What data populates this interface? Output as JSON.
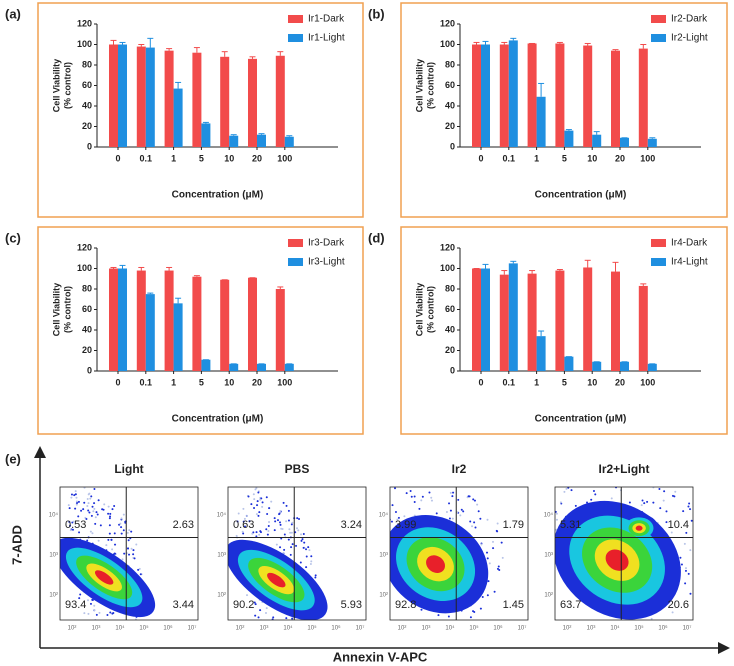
{
  "chart_data": [
    {
      "type": "bar",
      "label": "(a)",
      "ylabel": [
        "Cell Viability",
        "(% control)"
      ],
      "xlabel": "Concentration (μM)",
      "categories": [
        "0",
        "0.1",
        "1",
        "5",
        "10",
        "20",
        "100"
      ],
      "ylim": [
        0,
        120
      ],
      "yticks": [
        0,
        20,
        40,
        60,
        80,
        100,
        120
      ],
      "series": [
        {
          "name": "Ir1-Dark",
          "color": "#f24b4b",
          "values": [
            100,
            98,
            94,
            92,
            88,
            86,
            89
          ],
          "errors": [
            4,
            2,
            2,
            5,
            5,
            2,
            4
          ]
        },
        {
          "name": "Ir1-Light",
          "color": "#1f8fe0",
          "values": [
            100,
            97,
            57,
            23,
            11,
            12,
            10
          ],
          "errors": [
            2,
            9,
            6,
            1,
            1,
            1,
            1
          ]
        }
      ]
    },
    {
      "type": "bar",
      "label": "(b)",
      "ylabel": [
        "Cell Viability",
        "(% control)"
      ],
      "xlabel": "Concentration (μM)",
      "categories": [
        "0",
        "0.1",
        "1",
        "5",
        "10",
        "20",
        "100"
      ],
      "ylim": [
        0,
        120
      ],
      "yticks": [
        0,
        20,
        40,
        60,
        80,
        100,
        120
      ],
      "series": [
        {
          "name": "Ir2-Dark",
          "color": "#f24b4b",
          "values": [
            100,
            100,
            101,
            101,
            99,
            94,
            96
          ],
          "errors": [
            2,
            2,
            0,
            1,
            2,
            1,
            4
          ]
        },
        {
          "name": "Ir2-Light",
          "color": "#1f8fe0",
          "values": [
            100,
            104,
            49,
            16,
            12,
            9,
            8
          ],
          "errors": [
            3,
            2,
            13,
            1,
            3,
            0,
            1
          ]
        }
      ]
    },
    {
      "type": "bar",
      "label": "(c)",
      "ylabel": [
        "Cell Viability",
        "(% control)"
      ],
      "xlabel": "Concentration (μM)",
      "categories": [
        "0",
        "0.1",
        "1",
        "5",
        "10",
        "20",
        "100"
      ],
      "ylim": [
        0,
        120
      ],
      "yticks": [
        0,
        20,
        40,
        60,
        80,
        100,
        120
      ],
      "series": [
        {
          "name": "Ir3-Dark",
          "color": "#f24b4b",
          "values": [
            100,
            98,
            98,
            92,
            89,
            91,
            80
          ],
          "errors": [
            1,
            3,
            3,
            1,
            0,
            0,
            2
          ]
        },
        {
          "name": "Ir3-Light",
          "color": "#1f8fe0",
          "values": [
            100,
            75,
            66,
            11,
            7,
            7,
            7
          ],
          "errors": [
            3,
            1,
            5,
            0,
            0,
            0,
            0
          ]
        }
      ]
    },
    {
      "type": "bar",
      "label": "(d)",
      "ylabel": [
        "Cell Viability",
        "(% control)"
      ],
      "xlabel": "Concentration (μM)",
      "categories": [
        "0",
        "0.1",
        "1",
        "5",
        "10",
        "20",
        "100"
      ],
      "ylim": [
        0,
        120
      ],
      "yticks": [
        0,
        20,
        40,
        60,
        80,
        100,
        120
      ],
      "series": [
        {
          "name": "Ir4-Dark",
          "color": "#f24b4b",
          "values": [
            100,
            94,
            95,
            98,
            101,
            97,
            83
          ],
          "errors": [
            0,
            4,
            3,
            1,
            7,
            9,
            2
          ]
        },
        {
          "name": "Ir4-Light",
          "color": "#1f8fe0",
          "values": [
            100,
            105,
            34,
            14,
            9,
            9,
            7
          ],
          "errors": [
            4,
            2,
            5,
            0,
            0,
            0,
            0
          ]
        }
      ]
    }
  ],
  "flow": {
    "label": "(e)",
    "ylabel": "7-ADD",
    "xlabel": "Annexin V-APC",
    "xticks": [
      "10²",
      "10³",
      "10⁴",
      "10⁵",
      "10⁶",
      "10⁷"
    ],
    "yticks": [
      "10²",
      "10³",
      "10⁴"
    ],
    "panels": [
      {
        "title": "Light",
        "quadrants": [
          0.53,
          2.63,
          93.4,
          3.44
        ]
      },
      {
        "title": "PBS",
        "quadrants": [
          0.63,
          3.24,
          90.2,
          5.93
        ]
      },
      {
        "title": "Ir2",
        "quadrants": [
          3.99,
          1.79,
          92.8,
          1.45
        ]
      },
      {
        "title": "Ir2+Light",
        "quadrants": [
          5.31,
          10.4,
          63.7,
          20.6
        ]
      }
    ]
  }
}
